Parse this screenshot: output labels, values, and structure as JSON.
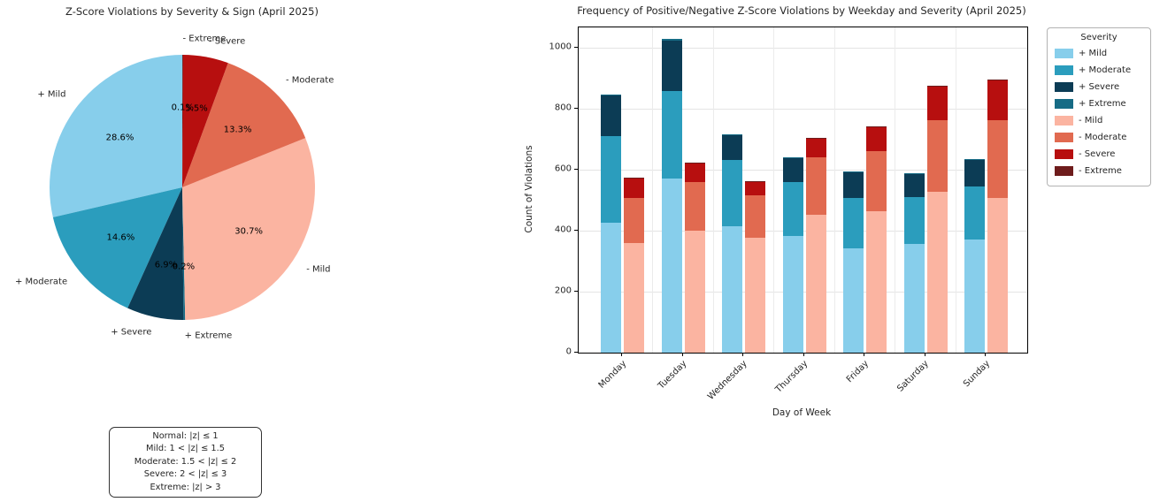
{
  "chart_data": [
    {
      "type": "pie",
      "title": "Z-Score Violations by Severity & Sign (April 2025)",
      "labels": [
        "+ Mild",
        "+ Moderate",
        "+ Severe",
        "+ Extreme",
        "- Mild",
        "- Moderate",
        "- Severe",
        "- Extreme"
      ],
      "values": [
        28.6,
        14.6,
        6.9,
        0.2,
        30.7,
        13.3,
        5.5,
        0.1
      ],
      "pct_labels": [
        "28.6%",
        "14.6%",
        "6.9%",
        "0.2%",
        "30.7%",
        "13.3%",
        "5.5%",
        "0.1%"
      ],
      "colors": [
        "#87ceeb",
        "#2b9dbd",
        "#0c3c55",
        "#166b85",
        "#fbb4a1",
        "#e16a50",
        "#b70f0f",
        "#6e1c1c"
      ],
      "start_angle": 90,
      "counterclock": true,
      "label_distance": 1.12,
      "pct_distance": 0.6,
      "annotation_lines": [
        "Normal: |z| ≤ 1",
        "Mild: 1 < |z| ≤ 1.5",
        "Moderate: 1.5 < |z| ≤ 2",
        "Severe: 2 < |z| ≤ 3",
        "Extreme: |z| > 3"
      ]
    },
    {
      "type": "bar",
      "stacked": true,
      "title": "Frequency of Positive/Negative Z-Score Violations by Weekday and Severity (April 2025)",
      "xlabel": "Day of Week",
      "ylabel": "Count of Violations",
      "categories": [
        "Monday",
        "Tuesday",
        "Wednesday",
        "Thursday",
        "Friday",
        "Saturday",
        "Sunday"
      ],
      "yticks": [
        0,
        200,
        400,
        600,
        800,
        1000
      ],
      "ylim": [
        0,
        1067
      ],
      "grid": true,
      "legend_title": "Severity",
      "legend_position": "upper right outside",
      "series": [
        {
          "name": "+ Mild",
          "group": "positive",
          "color": "#87ceeb",
          "values": [
            425,
            570,
            415,
            383,
            342,
            357,
            371
          ]
        },
        {
          "name": "+ Moderate",
          "group": "positive",
          "color": "#2b9dbd",
          "values": [
            285,
            288,
            217,
            177,
            165,
            153,
            174
          ]
        },
        {
          "name": "+ Severe",
          "group": "positive",
          "color": "#0c3c55",
          "values": [
            135,
            167,
            80,
            78,
            85,
            78,
            86
          ]
        },
        {
          "name": "+ Extreme",
          "group": "positive",
          "color": "#166b85",
          "values": [
            3,
            3,
            3,
            3,
            3,
            2,
            3
          ]
        },
        {
          "name": "- Mild",
          "group": "negative",
          "color": "#fbb4a1",
          "values": [
            359,
            400,
            377,
            452,
            464,
            528,
            507
          ]
        },
        {
          "name": "- Moderate",
          "group": "negative",
          "color": "#e16a50",
          "values": [
            148,
            160,
            139,
            189,
            197,
            235,
            255
          ]
        },
        {
          "name": "- Severe",
          "group": "negative",
          "color": "#b70f0f",
          "values": [
            67,
            62,
            46,
            63,
            81,
            110,
            131
          ]
        },
        {
          "name": "- Extreme",
          "group": "negative",
          "color": "#6e1c1c",
          "values": [
            1,
            2,
            1,
            1,
            1,
            2,
            2
          ]
        }
      ]
    }
  ]
}
